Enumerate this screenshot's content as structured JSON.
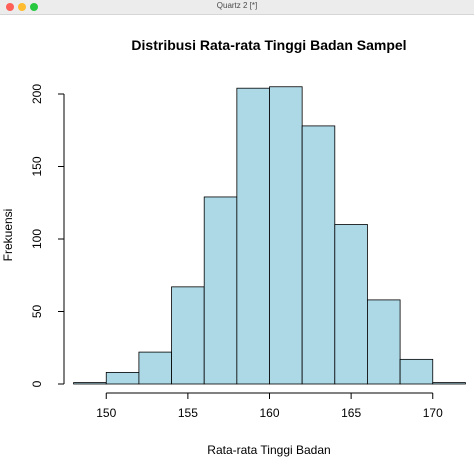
{
  "window": {
    "title": "Quartz 2 [*]"
  },
  "chart_data": {
    "type": "bar",
    "title": "Distribusi Rata-rata Tinggi Badan Sampel",
    "xlabel": "Rata-rata Tinggi Badan",
    "ylabel": "Frekuensi",
    "bins": [
      {
        "x0": 148,
        "x1": 150,
        "value": 1
      },
      {
        "x0": 150,
        "x1": 152,
        "value": 8
      },
      {
        "x0": 152,
        "x1": 154,
        "value": 22
      },
      {
        "x0": 154,
        "x1": 156,
        "value": 67
      },
      {
        "x0": 156,
        "x1": 158,
        "value": 129
      },
      {
        "x0": 158,
        "x1": 160,
        "value": 204
      },
      {
        "x0": 160,
        "x1": 162,
        "value": 205
      },
      {
        "x0": 162,
        "x1": 164,
        "value": 178
      },
      {
        "x0": 164,
        "x1": 166,
        "value": 110
      },
      {
        "x0": 166,
        "x1": 168,
        "value": 58
      },
      {
        "x0": 168,
        "x1": 170,
        "value": 17
      },
      {
        "x0": 170,
        "x1": 172,
        "value": 1
      }
    ],
    "xticks": [
      150,
      155,
      160,
      165,
      170
    ],
    "yticks": [
      0,
      50,
      100,
      150,
      200
    ],
    "xlim": [
      148,
      172
    ],
    "ylim": [
      0,
      205
    ],
    "bar_color": "#add8e6",
    "grid": false
  }
}
